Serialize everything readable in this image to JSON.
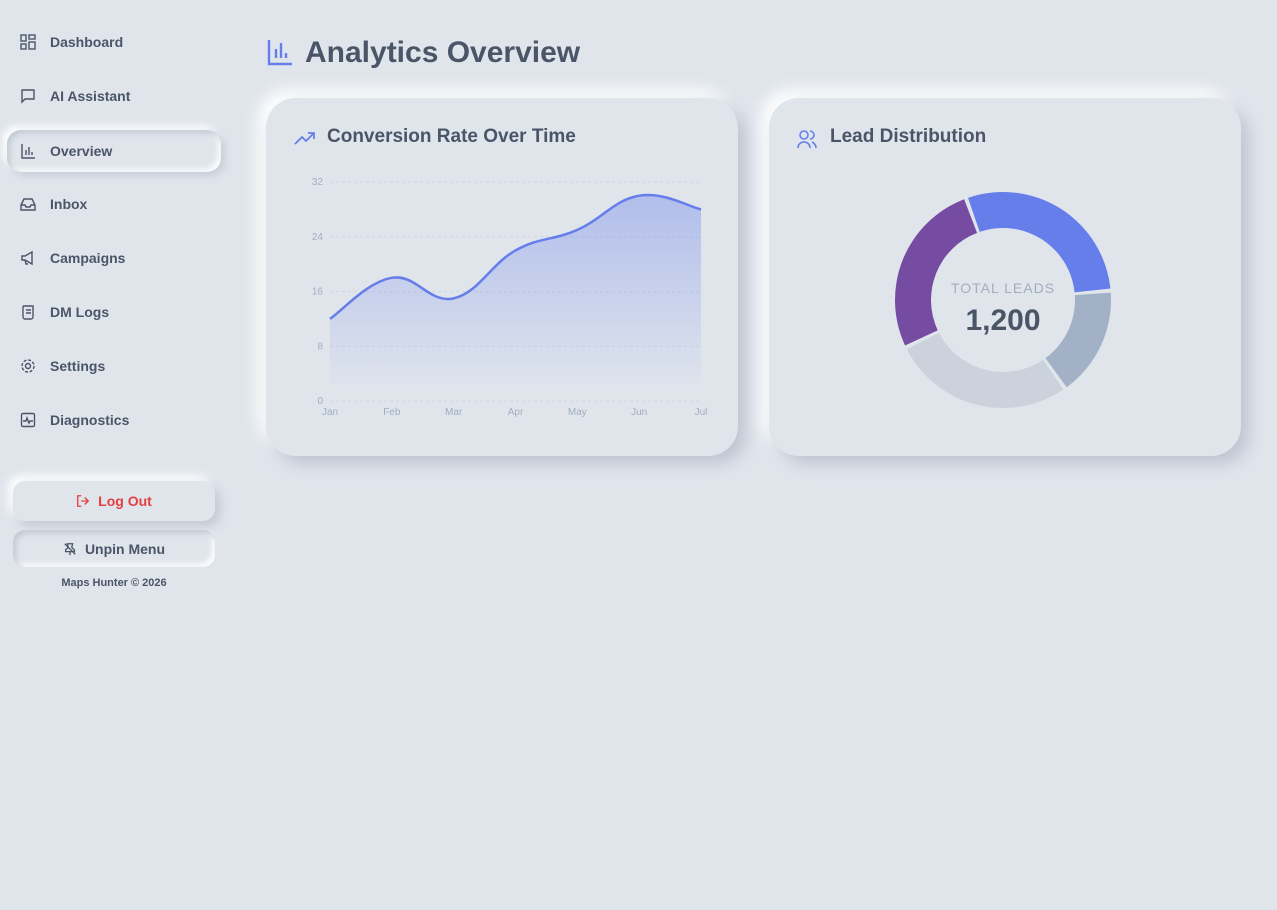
{
  "sidebar": {
    "nav": [
      "Dashboard",
      "AI Assistant",
      "Overview",
      "Inbox",
      "Campaigns",
      "DM Logs",
      "Settings",
      "Diagnostics"
    ],
    "buttons": [
      "Log Out",
      "Unpin Menu"
    ],
    "footer": "Maps Hunter © 2026"
  },
  "header": {
    "title": "Analytics Overview"
  },
  "chart_data": [
    {
      "type": "line",
      "title": "Conversion Rate Over Time",
      "categories": [
        "Jan",
        "Feb",
        "Mar",
        "Apr",
        "May",
        "Jun",
        "Jul"
      ],
      "values": [
        12,
        18,
        15,
        22,
        25,
        30,
        28
      ],
      "color": "#667eea",
      "ylim": [
        0,
        32
      ],
      "yticks": [
        0,
        8,
        16,
        24,
        32
      ],
      "grid": true
    },
    {
      "type": "doughnut",
      "title": "Lead Distribution",
      "values": [
        350,
        200,
        330,
        320
      ],
      "colors": [
        "#667eea",
        "#a3b1c6",
        "#cbd2dc",
        "#764ba2"
      ],
      "center_label": "TOTAL LEADS",
      "center_value": "1,200"
    }
  ]
}
